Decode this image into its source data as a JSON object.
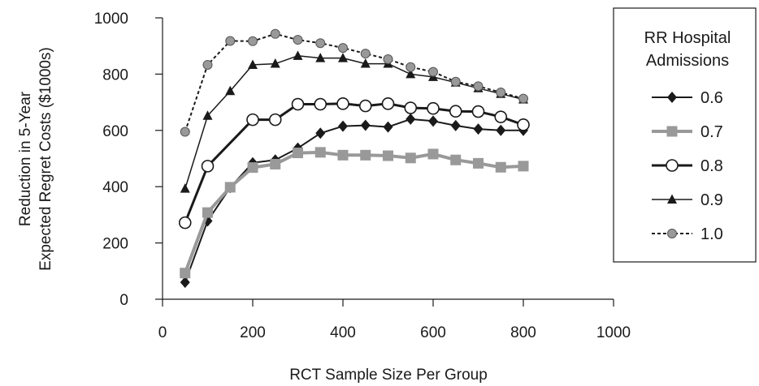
{
  "chart_data": {
    "type": "line",
    "title": "",
    "xlabel": "RCT Sample Size Per Group",
    "ylabel_lines": [
      "Reduction in 5-Year",
      "Expected Regret Costs ($1000s)"
    ],
    "xlim": [
      0,
      1000
    ],
    "ylim": [
      0,
      1000
    ],
    "xticks": [
      0,
      200,
      400,
      600,
      800,
      1000
    ],
    "yticks": [
      0,
      200,
      400,
      600,
      800,
      1000
    ],
    "grid": false,
    "legend": {
      "position": "right",
      "title_lines": [
        "RR Hospital",
        "Admissions"
      ]
    },
    "x": [
      50,
      100,
      150,
      200,
      250,
      300,
      350,
      400,
      450,
      500,
      550,
      600,
      650,
      700,
      750,
      800
    ],
    "series": [
      {
        "name": "0.6",
        "marker": "diamond",
        "color": "#1a1a1a",
        "stroke_width": 2,
        "dash": "",
        "values": [
          60,
          278,
          397,
          485,
          495,
          537,
          590,
          615,
          618,
          612,
          640,
          633,
          617,
          605,
          600,
          600
        ]
      },
      {
        "name": "0.7",
        "marker": "square",
        "color": "#999999",
        "stroke_width": 4,
        "dash": "",
        "values": [
          93,
          308,
          398,
          468,
          480,
          520,
          522,
          512,
          512,
          510,
          502,
          516,
          495,
          483,
          469,
          473
        ]
      },
      {
        "name": "0.8",
        "marker": "open-circle",
        "color": "#1a1a1a",
        "stroke_width": 3,
        "dash": "",
        "values": [
          272,
          473,
          null,
          638,
          638,
          693,
          693,
          695,
          687,
          695,
          680,
          678,
          668,
          667,
          648,
          620
        ]
      },
      {
        "name": "0.9",
        "marker": "triangle",
        "color": "#1a1a1a",
        "stroke_width": 1.5,
        "dash": "",
        "values": [
          393,
          652,
          740,
          833,
          837,
          865,
          857,
          857,
          837,
          837,
          800,
          790,
          770,
          750,
          730,
          710
        ]
      },
      {
        "name": "1.0",
        "marker": "gray-circle",
        "color": "#1a1a1a",
        "stroke_width": 2,
        "dash": "4,3",
        "values": [
          595,
          833,
          918,
          917,
          943,
          922,
          910,
          893,
          873,
          853,
          825,
          808,
          773,
          757,
          735,
          713
        ]
      }
    ]
  }
}
